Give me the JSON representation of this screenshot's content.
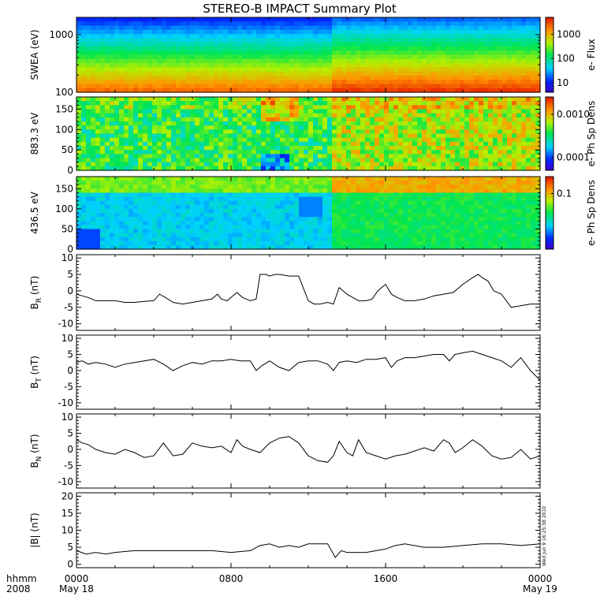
{
  "title": "STEREO-B IMPACT Summary Plot",
  "timestamp": "Wed Jun  9 16:25:38 2010",
  "bottom_axis": {
    "row1_label": "hhmm",
    "row2_label": "2008",
    "ticks": [
      {
        "time": "0000",
        "date": "May 18",
        "hours": 0
      },
      {
        "time": "0800",
        "date": "",
        "hours": 8
      },
      {
        "time": "1600",
        "date": "",
        "hours": 16
      },
      {
        "time": "0000",
        "date": "May 19",
        "hours": 24
      }
    ]
  },
  "chart_data": [
    {
      "type": "heatmap",
      "id": "swea",
      "ylabel": "SWEA (eV)",
      "yscale": "log",
      "ylim": [
        100,
        2000
      ],
      "ytick_labels": [
        "100",
        "1000"
      ],
      "colorbar": {
        "label": "e- Flux",
        "scale": "log",
        "range": [
          4,
          5000
        ],
        "tick_labels": [
          "10",
          "100",
          "1000"
        ],
        "tick_values": [
          10,
          100,
          1000
        ]
      },
      "description_values": {
        "high_flux_energy_eV": 100,
        "low_flux_energy_eV": 2000,
        "step_change_hour": 13.2
      }
    },
    {
      "type": "heatmap",
      "id": "pad883",
      "ylabel": "883.3 eV",
      "ylim": [
        0,
        180
      ],
      "ytick_labels": [
        "0",
        "50",
        "100",
        "150"
      ],
      "colorbar": {
        "label": "e- Ph Sp Dens",
        "scale": "log",
        "range": [
          5e-05,
          0.0025
        ],
        "tick_labels": [
          "0.0001",
          "0.0010"
        ],
        "tick_values": [
          0.0001,
          0.001
        ]
      },
      "description_values": {
        "step_change_hour": 13.2
      }
    },
    {
      "type": "heatmap",
      "id": "pad436",
      "ylabel": "436.5 eV",
      "ylim": [
        0,
        180
      ],
      "ytick_labels": [
        "0",
        "50",
        "100",
        "150"
      ],
      "colorbar": {
        "label": "e- Ph Sp Dens",
        "scale": "log",
        "range": [
          0.005,
          0.25
        ],
        "tick_labels": [
          "0.1"
        ],
        "tick_values": [
          0.1
        ]
      },
      "description_values": {
        "step_change_hour": 13.2
      }
    },
    {
      "type": "line",
      "id": "br",
      "ylabel": "B",
      "ylabel_sub": "R",
      "ylabel_unit": " (nT)",
      "ylim": [
        -12,
        11
      ],
      "ytick_labels": [
        "-10",
        "-5",
        "0",
        "5",
        "10"
      ],
      "x_hours": [
        0,
        0.3,
        0.6,
        1,
        1.5,
        2,
        2.5,
        3,
        3.5,
        4,
        4.3,
        4.6,
        5,
        5.5,
        6,
        6.5,
        7,
        7.3,
        7.5,
        7.8,
        8,
        8.3,
        8.6,
        9,
        9.3,
        9.5,
        9.8,
        10,
        10.3,
        10.5,
        11,
        11.5,
        12,
        12.3,
        12.6,
        13,
        13.3,
        13.6,
        14,
        14.3,
        14.6,
        15,
        15.3,
        15.6,
        16,
        16.3,
        16.6,
        17,
        17.5,
        18,
        18.5,
        19,
        19.5,
        20,
        20.5,
        20.8,
        21,
        21.3,
        21.6,
        22,
        22.5,
        23,
        23.5,
        24
      ],
      "y": [
        -1,
        -1.5,
        -2,
        -3,
        -3,
        -3,
        -3.5,
        -3.5,
        -3.2,
        -3,
        -1,
        -2,
        -3.5,
        -4,
        -3.5,
        -3,
        -2.5,
        -1,
        -2.5,
        -3,
        -2,
        -0.5,
        -2,
        -3,
        -2.5,
        5,
        5,
        4.5,
        5,
        5,
        4.5,
        4.5,
        -3,
        -4,
        -4,
        -3.5,
        -4,
        1,
        -1,
        -2,
        -3,
        -3,
        -2.5,
        0,
        2,
        -1,
        -2,
        -3,
        -3,
        -2.5,
        -1.5,
        -1,
        -0.5,
        2,
        4,
        5,
        4,
        3,
        0,
        -1,
        -5,
        -4.5,
        -4,
        -4
      ]
    },
    {
      "type": "line",
      "id": "bt",
      "ylabel": "B",
      "ylabel_sub": "T",
      "ylabel_unit": " (nT)",
      "ylim": [
        -12,
        11
      ],
      "ytick_labels": [
        "-10",
        "-5",
        "0",
        "5",
        "10"
      ],
      "x_hours": [
        0,
        0.3,
        0.6,
        1,
        1.5,
        2,
        2.5,
        3,
        3.5,
        4,
        4.5,
        5,
        5.5,
        6,
        6.5,
        7,
        7.5,
        8,
        8.5,
        9,
        9.3,
        9.6,
        10,
        10.5,
        11,
        11.5,
        12,
        12.5,
        13,
        13.3,
        13.6,
        14,
        14.5,
        15,
        15.5,
        16,
        16.3,
        16.6,
        17,
        17.5,
        18,
        18.5,
        19,
        19.3,
        19.6,
        20,
        20.5,
        21,
        21.5,
        22,
        22.5,
        23,
        23.5,
        24
      ],
      "y": [
        2.5,
        3,
        2,
        2.5,
        2,
        1,
        2,
        2.5,
        3,
        3.5,
        2,
        0,
        1.5,
        2.5,
        2,
        3,
        3,
        3.5,
        3,
        3,
        0,
        1.5,
        3,
        1,
        0,
        2.5,
        3,
        3,
        2,
        0,
        2.5,
        3,
        2.5,
        3.5,
        3.5,
        4,
        1,
        3,
        4,
        4,
        4.5,
        5,
        5,
        3,
        5,
        5.5,
        6,
        5,
        4,
        3,
        1,
        4,
        0,
        -3
      ]
    },
    {
      "type": "line",
      "id": "bn",
      "ylabel": "B",
      "ylabel_sub": "N",
      "ylabel_unit": " (nT)",
      "ylim": [
        -12,
        11
      ],
      "ytick_labels": [
        "-10",
        "-5",
        "0",
        "5",
        "10"
      ],
      "x_hours": [
        0,
        0.3,
        0.6,
        1,
        1.5,
        2,
        2.5,
        3,
        3.5,
        4,
        4.5,
        5,
        5.5,
        6,
        6.5,
        7,
        7.5,
        8,
        8.3,
        8.6,
        9,
        9.5,
        10,
        10.5,
        11,
        11.5,
        12,
        12.5,
        13,
        13.3,
        13.6,
        14,
        14.3,
        14.6,
        15,
        15.5,
        16,
        16.5,
        17,
        17.5,
        18,
        18.5,
        19,
        19.3,
        19.6,
        20,
        20.5,
        21,
        21.5,
        22,
        22.5,
        23,
        23.5,
        24
      ],
      "y": [
        3,
        2,
        1.5,
        0,
        -1,
        -1.5,
        0,
        -1,
        -2.5,
        -2,
        2,
        -2,
        -1.5,
        2,
        1,
        0.5,
        1,
        -1,
        3,
        1,
        0,
        -1,
        2,
        3.5,
        4,
        2,
        -2,
        -3.5,
        -4,
        -2,
        2.5,
        -1,
        -2,
        3,
        -1,
        -2,
        -3,
        -2,
        -1.5,
        -0.5,
        0.5,
        -0.5,
        3,
        2,
        -1,
        0.5,
        3,
        1,
        -2,
        -3,
        -2.5,
        0,
        -3,
        -2
      ]
    },
    {
      "type": "line",
      "id": "bmag",
      "ylabel": "|B| (nT)",
      "ylim": [
        -1,
        21
      ],
      "ytick_labels": [
        "0",
        "5",
        "10",
        "15",
        "20"
      ],
      "x_hours": [
        0,
        0.5,
        1,
        1.5,
        2,
        3,
        4,
        5,
        6,
        7,
        8,
        9,
        9.5,
        10,
        10.5,
        11,
        11.5,
        12,
        12.5,
        13,
        13.2,
        13.4,
        13.7,
        14,
        15,
        16,
        16.5,
        17,
        18,
        19,
        20,
        21,
        22,
        23,
        24
      ],
      "y": [
        4,
        3,
        3.5,
        3,
        3.5,
        4,
        4,
        4,
        4,
        4,
        3.5,
        4,
        5.5,
        6,
        5,
        5.5,
        5,
        6,
        6,
        6,
        4,
        2,
        4,
        3.5,
        3.5,
        4.5,
        5.5,
        6,
        5,
        5,
        5.5,
        6,
        6,
        5.5,
        6
      ]
    }
  ]
}
